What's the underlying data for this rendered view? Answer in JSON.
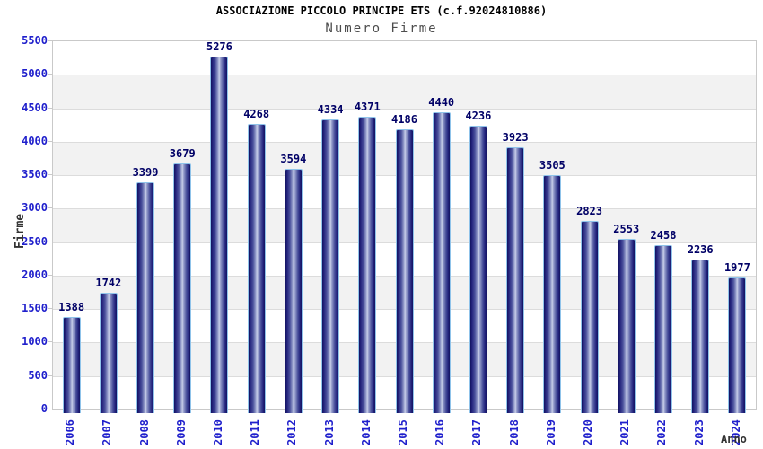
{
  "chart_data": {
    "type": "bar",
    "title": "ASSOCIAZIONE PICCOLO PRINCIPE ETS (c.f.92024810886)",
    "subtitle": "Numero Firme",
    "xlabel": "Anno",
    "ylabel": "Firme",
    "categories": [
      "2006",
      "2007",
      "2008",
      "2009",
      "2010",
      "2011",
      "2012",
      "2013",
      "2014",
      "2015",
      "2016",
      "2017",
      "2018",
      "2019",
      "2020",
      "2021",
      "2022",
      "2023",
      "2024"
    ],
    "values": [
      1388,
      1742,
      3399,
      3679,
      5276,
      4268,
      3594,
      4334,
      4371,
      4186,
      4440,
      4236,
      3923,
      3505,
      2823,
      2553,
      2458,
      2236,
      1977
    ],
    "ylim": [
      0,
      5500
    ],
    "ytick_step": 500,
    "grid": "horizontal-bands",
    "legend_position": "none",
    "colors": {
      "tick_label": "#2020cc",
      "value_label": "#000066",
      "title": "#000000",
      "subtitle": "#4d4d4d",
      "axis_label": "#333333",
      "band_gray": "#f2f2f2",
      "band_white": "#ffffff",
      "grid_line": "#dcdcdc",
      "plot_border": "#c9c9c9",
      "bar_edge_dark": "#12125f",
      "bar_center_light": "#c9d0ea",
      "bar_border": "#8fc3ea"
    }
  }
}
